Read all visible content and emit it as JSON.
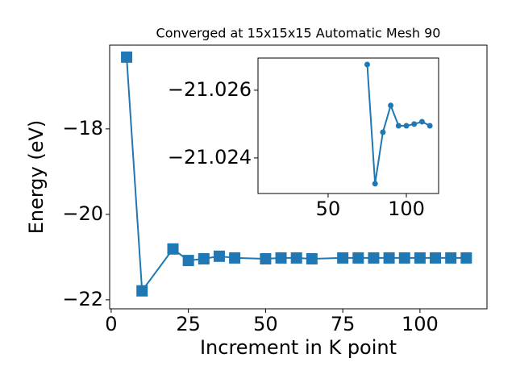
{
  "chart_data": [
    {
      "type": "line",
      "title": "Converged at 15x15x15 Automatic Mesh 90",
      "xlabel": "Increment in K point",
      "ylabel": "Energy (eV)",
      "x": [
        5,
        10,
        20,
        25,
        30,
        35,
        40,
        50,
        55,
        60,
        65,
        75,
        80,
        85,
        90,
        95,
        100,
        105,
        110,
        115
      ],
      "values": [
        -16.32,
        -21.79,
        -20.81,
        -21.08,
        -21.04,
        -20.98,
        -21.02,
        -21.04,
        -21.02,
        -21.02,
        -21.04,
        -21.02,
        -21.02,
        -21.02,
        -21.02,
        -21.02,
        -21.02,
        -21.02,
        -21.02,
        -21.02
      ],
      "color": "#1f77b4",
      "marker": "square",
      "xlim": [
        -0.5,
        121.7
      ],
      "xticks": [
        0,
        25,
        50,
        75,
        100
      ],
      "ylim": [
        -22.21,
        -16.04
      ],
      "yticks": [
        {
          "value": -22,
          "label": "−22"
        },
        {
          "value": -20,
          "label": "−20"
        },
        {
          "value": -18,
          "label": "−18"
        }
      ]
    },
    {
      "type": "line",
      "x": [
        75,
        80,
        85,
        90,
        95,
        100,
        105,
        110,
        115
      ],
      "values": [
        -21.02676,
        -21.02324,
        -21.02476,
        -21.02555,
        -21.02495,
        -21.02495,
        -21.025,
        -21.02507,
        -21.02495
      ],
      "color": "#1f77b4",
      "marker": "circle",
      "xlim": [
        5.2,
        120.6
      ],
      "xticks": [
        50,
        100
      ],
      "ylim": [
        -21.02295,
        -21.02695
      ],
      "yticks": [
        {
          "value": -21.024,
          "label": "−21.024"
        },
        {
          "value": -21.026,
          "label": "−21.026"
        }
      ]
    }
  ]
}
